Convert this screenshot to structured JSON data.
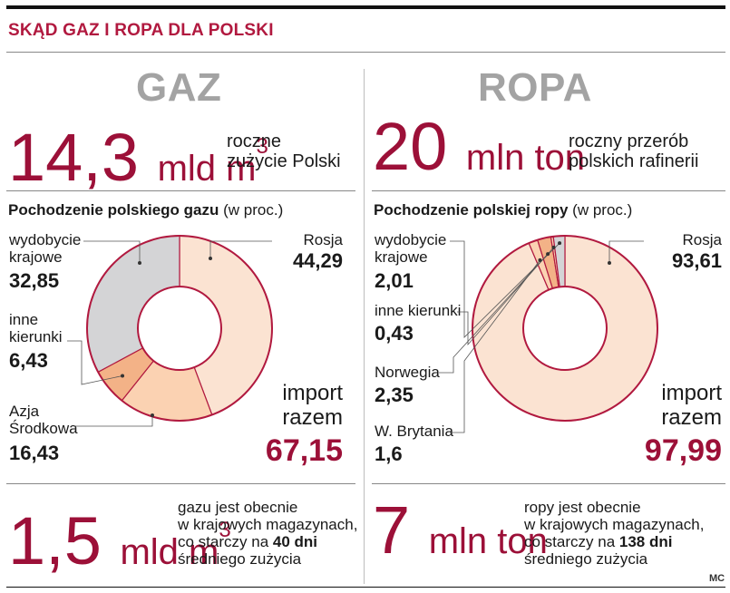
{
  "headline": "SKĄD GAZ I ROPA DLA POLSKI",
  "gas": {
    "section_title": "GAZ",
    "consumption": {
      "value": "14,3",
      "unit": "mld m",
      "sup": "3",
      "desc_line1": "roczne",
      "desc_line2": "zużycie Polski"
    },
    "pie_title_bold": "Pochodzenie polskiego gazu",
    "pie_title_note": "(w proc.)",
    "import_label_1": "import",
    "import_label_2": "razem",
    "import_total": "67,15",
    "storage": {
      "value": "1,5",
      "unit": "mld m",
      "sup": "3",
      "line1": "gazu jest obecnie",
      "line2": "w krajowych magazynach,",
      "line3_pre": "co starczy na ",
      "line3_bold": "40 dni",
      "line4": "średniego zużycia"
    }
  },
  "oil": {
    "section_title": "ROPA",
    "processing": {
      "value": "20",
      "unit": "mln ton",
      "desc_line1": "roczny przerób",
      "desc_line2": "polskich rafinerii"
    },
    "pie_title_bold": "Pochodzenie polskiej ropy",
    "pie_title_note": "(w proc.)",
    "import_label_1": "import",
    "import_label_2": "razem",
    "import_total": "97,99",
    "storage": {
      "value": "7",
      "unit": "mln ton",
      "line1": "ropy jest obecnie",
      "line2": "w krajowych magazynach,",
      "line3_pre": "co starczy na ",
      "line3_bold": "138 dni",
      "line4": "średniego zużycia"
    }
  },
  "credit": "MC",
  "chart_data": [
    {
      "type": "pie",
      "title": "Pochodzenie polskiego gazu (w proc.)",
      "slices": [
        {
          "label_1": "Rosja",
          "label_2": "",
          "value": 44.29,
          "value_text": "44,29",
          "color": "#fbe3d2"
        },
        {
          "label_1": "Azja",
          "label_2": "Środkowa",
          "value": 16.43,
          "value_text": "16,43",
          "color": "#fbd2b2"
        },
        {
          "label_1": "inne",
          "label_2": "kierunki",
          "value": 6.43,
          "value_text": "6,43",
          "color": "#f3b287"
        },
        {
          "label_1": "wydobycie",
          "label_2": "krajowe",
          "value": 32.85,
          "value_text": "32,85",
          "color": "#d4d4d6"
        }
      ]
    },
    {
      "type": "pie",
      "title": "Pochodzenie polskiej ropy (w proc.)",
      "slices": [
        {
          "label_1": "Rosja",
          "label_2": "",
          "value": 93.61,
          "value_text": "93,61",
          "color": "#fbe3d2"
        },
        {
          "label_1": "W. Brytania",
          "label_2": "",
          "value": 1.6,
          "value_text": "1,6",
          "color": "#fbd2b2"
        },
        {
          "label_1": "Norwegia",
          "label_2": "",
          "value": 2.35,
          "value_text": "2,35",
          "color": "#f3b287"
        },
        {
          "label_1": "inne kierunki",
          "label_2": "",
          "value": 0.43,
          "value_text": "0,43",
          "color": "#fbd2b2"
        },
        {
          "label_1": "wydobycie",
          "label_2": "krajowe",
          "value": 2.01,
          "value_text": "2,01",
          "color": "#d4d4d6"
        }
      ]
    }
  ]
}
